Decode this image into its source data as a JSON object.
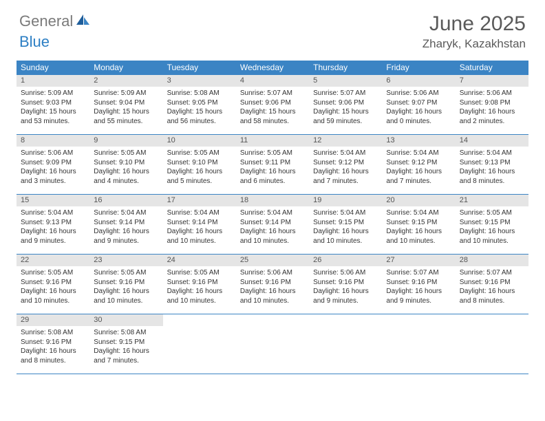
{
  "logo": {
    "part1": "General",
    "part2": "Blue"
  },
  "title": "June 2025",
  "subtitle": "Zharyk, Kazakhstan",
  "colors": {
    "header_bg": "#3b84c4",
    "header_text": "#ffffff",
    "daynum_bg": "#e5e5e5",
    "daynum_text": "#555555",
    "body_text": "#333333",
    "title_text": "#5a5a5a",
    "logo_gray": "#7a7a7a",
    "logo_blue": "#2d7fc4",
    "rule": "#3b84c4"
  },
  "dayNames": [
    "Sunday",
    "Monday",
    "Tuesday",
    "Wednesday",
    "Thursday",
    "Friday",
    "Saturday"
  ],
  "weeks": [
    [
      {
        "n": "1",
        "sr": "Sunrise: 5:09 AM",
        "ss": "Sunset: 9:03 PM",
        "d1": "Daylight: 15 hours",
        "d2": "and 53 minutes."
      },
      {
        "n": "2",
        "sr": "Sunrise: 5:09 AM",
        "ss": "Sunset: 9:04 PM",
        "d1": "Daylight: 15 hours",
        "d2": "and 55 minutes."
      },
      {
        "n": "3",
        "sr": "Sunrise: 5:08 AM",
        "ss": "Sunset: 9:05 PM",
        "d1": "Daylight: 15 hours",
        "d2": "and 56 minutes."
      },
      {
        "n": "4",
        "sr": "Sunrise: 5:07 AM",
        "ss": "Sunset: 9:06 PM",
        "d1": "Daylight: 15 hours",
        "d2": "and 58 minutes."
      },
      {
        "n": "5",
        "sr": "Sunrise: 5:07 AM",
        "ss": "Sunset: 9:06 PM",
        "d1": "Daylight: 15 hours",
        "d2": "and 59 minutes."
      },
      {
        "n": "6",
        "sr": "Sunrise: 5:06 AM",
        "ss": "Sunset: 9:07 PM",
        "d1": "Daylight: 16 hours",
        "d2": "and 0 minutes."
      },
      {
        "n": "7",
        "sr": "Sunrise: 5:06 AM",
        "ss": "Sunset: 9:08 PM",
        "d1": "Daylight: 16 hours",
        "d2": "and 2 minutes."
      }
    ],
    [
      {
        "n": "8",
        "sr": "Sunrise: 5:06 AM",
        "ss": "Sunset: 9:09 PM",
        "d1": "Daylight: 16 hours",
        "d2": "and 3 minutes."
      },
      {
        "n": "9",
        "sr": "Sunrise: 5:05 AM",
        "ss": "Sunset: 9:10 PM",
        "d1": "Daylight: 16 hours",
        "d2": "and 4 minutes."
      },
      {
        "n": "10",
        "sr": "Sunrise: 5:05 AM",
        "ss": "Sunset: 9:10 PM",
        "d1": "Daylight: 16 hours",
        "d2": "and 5 minutes."
      },
      {
        "n": "11",
        "sr": "Sunrise: 5:05 AM",
        "ss": "Sunset: 9:11 PM",
        "d1": "Daylight: 16 hours",
        "d2": "and 6 minutes."
      },
      {
        "n": "12",
        "sr": "Sunrise: 5:04 AM",
        "ss": "Sunset: 9:12 PM",
        "d1": "Daylight: 16 hours",
        "d2": "and 7 minutes."
      },
      {
        "n": "13",
        "sr": "Sunrise: 5:04 AM",
        "ss": "Sunset: 9:12 PM",
        "d1": "Daylight: 16 hours",
        "d2": "and 7 minutes."
      },
      {
        "n": "14",
        "sr": "Sunrise: 5:04 AM",
        "ss": "Sunset: 9:13 PM",
        "d1": "Daylight: 16 hours",
        "d2": "and 8 minutes."
      }
    ],
    [
      {
        "n": "15",
        "sr": "Sunrise: 5:04 AM",
        "ss": "Sunset: 9:13 PM",
        "d1": "Daylight: 16 hours",
        "d2": "and 9 minutes."
      },
      {
        "n": "16",
        "sr": "Sunrise: 5:04 AM",
        "ss": "Sunset: 9:14 PM",
        "d1": "Daylight: 16 hours",
        "d2": "and 9 minutes."
      },
      {
        "n": "17",
        "sr": "Sunrise: 5:04 AM",
        "ss": "Sunset: 9:14 PM",
        "d1": "Daylight: 16 hours",
        "d2": "and 10 minutes."
      },
      {
        "n": "18",
        "sr": "Sunrise: 5:04 AM",
        "ss": "Sunset: 9:14 PM",
        "d1": "Daylight: 16 hours",
        "d2": "and 10 minutes."
      },
      {
        "n": "19",
        "sr": "Sunrise: 5:04 AM",
        "ss": "Sunset: 9:15 PM",
        "d1": "Daylight: 16 hours",
        "d2": "and 10 minutes."
      },
      {
        "n": "20",
        "sr": "Sunrise: 5:04 AM",
        "ss": "Sunset: 9:15 PM",
        "d1": "Daylight: 16 hours",
        "d2": "and 10 minutes."
      },
      {
        "n": "21",
        "sr": "Sunrise: 5:05 AM",
        "ss": "Sunset: 9:15 PM",
        "d1": "Daylight: 16 hours",
        "d2": "and 10 minutes."
      }
    ],
    [
      {
        "n": "22",
        "sr": "Sunrise: 5:05 AM",
        "ss": "Sunset: 9:16 PM",
        "d1": "Daylight: 16 hours",
        "d2": "and 10 minutes."
      },
      {
        "n": "23",
        "sr": "Sunrise: 5:05 AM",
        "ss": "Sunset: 9:16 PM",
        "d1": "Daylight: 16 hours",
        "d2": "and 10 minutes."
      },
      {
        "n": "24",
        "sr": "Sunrise: 5:05 AM",
        "ss": "Sunset: 9:16 PM",
        "d1": "Daylight: 16 hours",
        "d2": "and 10 minutes."
      },
      {
        "n": "25",
        "sr": "Sunrise: 5:06 AM",
        "ss": "Sunset: 9:16 PM",
        "d1": "Daylight: 16 hours",
        "d2": "and 10 minutes."
      },
      {
        "n": "26",
        "sr": "Sunrise: 5:06 AM",
        "ss": "Sunset: 9:16 PM",
        "d1": "Daylight: 16 hours",
        "d2": "and 9 minutes."
      },
      {
        "n": "27",
        "sr": "Sunrise: 5:07 AM",
        "ss": "Sunset: 9:16 PM",
        "d1": "Daylight: 16 hours",
        "d2": "and 9 minutes."
      },
      {
        "n": "28",
        "sr": "Sunrise: 5:07 AM",
        "ss": "Sunset: 9:16 PM",
        "d1": "Daylight: 16 hours",
        "d2": "and 8 minutes."
      }
    ],
    [
      {
        "n": "29",
        "sr": "Sunrise: 5:08 AM",
        "ss": "Sunset: 9:16 PM",
        "d1": "Daylight: 16 hours",
        "d2": "and 8 minutes."
      },
      {
        "n": "30",
        "sr": "Sunrise: 5:08 AM",
        "ss": "Sunset: 9:15 PM",
        "d1": "Daylight: 16 hours",
        "d2": "and 7 minutes."
      },
      null,
      null,
      null,
      null,
      null
    ]
  ]
}
